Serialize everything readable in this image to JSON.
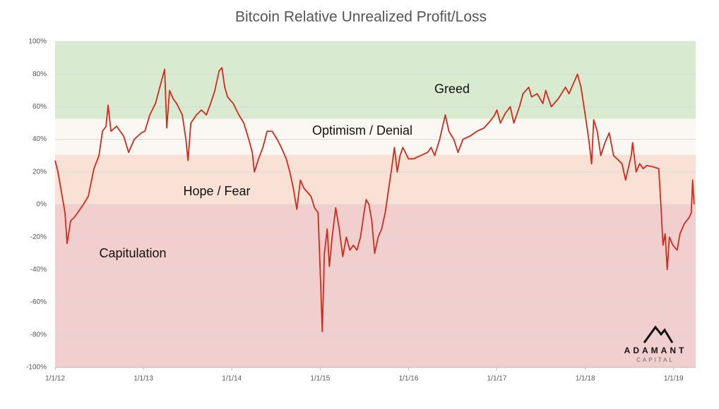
{
  "chart_data": {
    "type": "line",
    "title": "Bitcoin Relative Unrealized Profit/Loss",
    "x": [
      2012,
      2012.032,
      2012.08,
      2012.112,
      2012.136,
      2012.176,
      2012.216,
      2012.256,
      2012.32,
      2012.376,
      2012.44,
      2012.496,
      2012.536,
      2012.576,
      2012.6,
      2012.632,
      2012.696,
      2012.776,
      2012.832,
      2012.896,
      2012.976,
      2013.016,
      2013.072,
      2013.136,
      2013.2,
      2013.24,
      2013.264,
      2013.296,
      2013.336,
      2013.376,
      2013.44,
      2013.48,
      2013.504,
      2013.536,
      2013.6,
      2013.656,
      2013.712,
      2013.76,
      2013.808,
      2013.856,
      2013.888,
      2013.92,
      2013.952,
      2014.016,
      2014.08,
      2014.136,
      2014.192,
      2014.232,
      2014.256,
      2014.296,
      2014.352,
      2014.4,
      2014.456,
      2014.512,
      2014.56,
      2014.616,
      2014.656,
      2014.696,
      2014.736,
      2014.776,
      2014.816,
      2014.896,
      2014.936,
      2014.976,
      2015,
      2015.024,
      2015.048,
      2015.08,
      2015.104,
      2015.136,
      2015.176,
      2015.216,
      2015.256,
      2015.296,
      2015.336,
      2015.376,
      2015.416,
      2015.456,
      2015.496,
      2015.52,
      2015.552,
      2015.584,
      2015.616,
      2015.656,
      2015.696,
      2015.736,
      2015.776,
      2015.816,
      2015.84,
      2015.872,
      2015.904,
      2015.936,
      2016,
      2016.056,
      2016.136,
      2016.216,
      2016.256,
      2016.296,
      2016.352,
      2016.416,
      2016.456,
      2016.512,
      2016.56,
      2016.616,
      2016.696,
      2016.776,
      2016.856,
      2016.936,
      2016.976,
      2017,
      2017.04,
      2017.096,
      2017.152,
      2017.192,
      2017.256,
      2017.296,
      2017.36,
      2017.392,
      2017.456,
      2017.52,
      2017.552,
      2017.616,
      2017.696,
      2017.776,
      2017.816,
      2017.872,
      2017.912,
      2017.952,
      2018,
      2018.04,
      2018.072,
      2018.096,
      2018.136,
      2018.176,
      2018.224,
      2018.272,
      2018.32,
      2018.36,
      2018.416,
      2018.456,
      2018.52,
      2018.536,
      2018.576,
      2018.616,
      2018.656,
      2018.696,
      2018.776,
      2018.832,
      2018.856,
      2018.88,
      2018.904,
      2018.928,
      2018.952,
      2018.992,
      2019.04,
      2019.072,
      2019.12,
      2019.176,
      2019.2,
      2019.216,
      2019.232
    ],
    "values": [
      27,
      20,
      5,
      -5,
      -24,
      -10,
      -8,
      -5,
      0,
      5,
      22,
      30,
      45,
      48,
      61,
      45,
      48,
      42,
      32,
      40,
      44,
      45,
      55,
      62,
      75,
      83,
      47,
      70,
      65,
      62,
      55,
      40,
      27,
      50,
      55,
      58,
      55,
      62,
      70,
      82,
      84,
      72,
      66,
      62,
      55,
      50,
      40,
      32,
      20,
      27,
      35,
      45,
      45,
      40,
      35,
      28,
      20,
      10,
      -3,
      15,
      10,
      5,
      -2,
      -5,
      -40,
      -78,
      -30,
      -15,
      -38,
      -20,
      -2,
      -15,
      -32,
      -20,
      -28,
      -25,
      -28,
      -20,
      -5,
      3,
      0,
      -10,
      -30,
      -20,
      -15,
      -5,
      10,
      25,
      35,
      20,
      30,
      35,
      28,
      28,
      30,
      32,
      35,
      30,
      40,
      55,
      45,
      40,
      32,
      40,
      42,
      45,
      47,
      52,
      55,
      58,
      50,
      56,
      60,
      50,
      60,
      68,
      72,
      66,
      68,
      62,
      70,
      60,
      65,
      72,
      68,
      75,
      80,
      72,
      55,
      40,
      25,
      52,
      45,
      30,
      38,
      44,
      30,
      28,
      25,
      15,
      30,
      38,
      20,
      25,
      22,
      24,
      23,
      22,
      0,
      -25,
      -18,
      -40,
      -20,
      -25,
      -28,
      -18,
      -12,
      -8,
      -5,
      15,
      0
    ],
    "color": "#d42a1a",
    "xlim": [
      2012,
      2019.25
    ],
    "xticks": [
      {
        "value": 2012,
        "label": "1/1/12"
      },
      {
        "value": 2013,
        "label": "1/1/13"
      },
      {
        "value": 2014,
        "label": "1/1/14"
      },
      {
        "value": 2015,
        "label": "1/1/15"
      },
      {
        "value": 2016,
        "label": "1/1/16"
      },
      {
        "value": 2017,
        "label": "1/1/17"
      },
      {
        "value": 2018,
        "label": "1/1/18"
      },
      {
        "value": 2019,
        "label": "1/1/19"
      }
    ],
    "ylim": [
      -100,
      100
    ],
    "yticks": [
      {
        "value": -100,
        "label": "-100%"
      },
      {
        "value": -80,
        "label": "-80%"
      },
      {
        "value": -60,
        "label": "-60%"
      },
      {
        "value": -40,
        "label": "-40%"
      },
      {
        "value": -20,
        "label": "-20%"
      },
      {
        "value": 0,
        "label": "0%"
      },
      {
        "value": 20,
        "label": "20%"
      },
      {
        "value": 40,
        "label": "40%"
      },
      {
        "value": 60,
        "label": "60%"
      },
      {
        "value": 80,
        "label": "80%"
      },
      {
        "value": 100,
        "label": "100%"
      }
    ],
    "grid": true,
    "bands": [
      {
        "from": 52.5,
        "to": 100,
        "color": "#d8ebd1",
        "label": "Greed"
      },
      {
        "from": 30.5,
        "to": 52.5,
        "color": "#fbf8f4",
        "label": "Optimism / Denial"
      },
      {
        "from": 0,
        "to": 30.5,
        "color": "#f9e1d6",
        "label": "Hope / Fear"
      },
      {
        "from": -100,
        "to": 0,
        "color": "#f1cfcf",
        "label": "Capitulation"
      }
    ]
  },
  "logo": {
    "name": "ADAMANT",
    "tagline": "CAPITAL"
  }
}
